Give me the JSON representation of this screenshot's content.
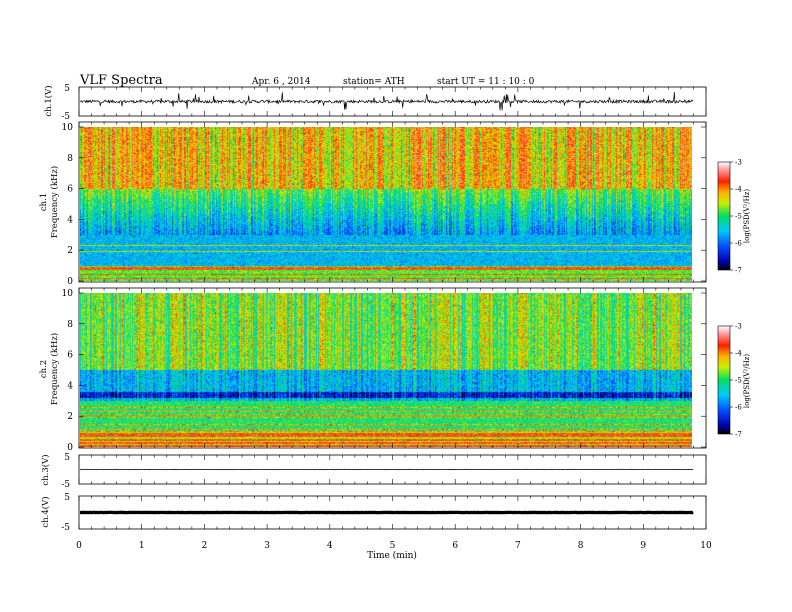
{
  "header": {
    "title": "VLF  Spectra",
    "date": "Apr. 6  , 2014",
    "station": "station= ATH",
    "start": "start  UT  =    11 : 10 : 0"
  },
  "chart_data": [
    {
      "type": "line",
      "panel": "ch1-waveform",
      "ylabel": "ch.1(V)",
      "ylim": [
        -5,
        5
      ],
      "y_ticks": [
        5,
        -5
      ],
      "xlim": [
        0,
        10
      ],
      "baseline": 0,
      "approx_amplitude": 1
    },
    {
      "type": "heatmap",
      "panel": "ch1-spectrogram",
      "ylabel": "ch.1\nFrequency (kHz)",
      "ylim": [
        0,
        10
      ],
      "y_ticks": [
        0,
        2,
        4,
        6,
        8,
        10
      ],
      "xlim": [
        0,
        9.8
      ],
      "colorbar_label": "log(PSD(V²/Hz)",
      "colorbar_range": [
        -7,
        -3
      ],
      "colorbar_ticks": [
        -7,
        -6,
        -5,
        -4,
        -3
      ]
    },
    {
      "type": "heatmap",
      "panel": "ch2-spectrogram",
      "ylabel": "ch.2\nFrequency (kHz)",
      "ylim": [
        0,
        10
      ],
      "y_ticks": [
        0,
        2,
        4,
        6,
        8,
        10
      ],
      "xlim": [
        0,
        9.8
      ],
      "colorbar_label": "log(PSD(V²/Hz)",
      "colorbar_range": [
        -7,
        -3
      ],
      "colorbar_ticks": [
        -7,
        -6,
        -5,
        -4,
        -3
      ]
    },
    {
      "type": "line",
      "panel": "ch3-waveform",
      "ylabel": "ch.3(V)",
      "ylim": [
        -5,
        5
      ],
      "y_ticks": [
        5,
        -5
      ],
      "xlim": [
        0,
        10
      ],
      "baseline": 0
    },
    {
      "type": "line",
      "panel": "ch4-waveform",
      "ylabel": "ch.4(V)",
      "ylim": [
        -5,
        5
      ],
      "y_ticks": [
        5,
        -5
      ],
      "xlim": [
        0,
        10
      ],
      "baseline": 0
    }
  ],
  "x_axis": {
    "label": "Time  (min)",
    "ticks": [
      "0",
      "1",
      "2",
      "3",
      "4",
      "5",
      "6",
      "7",
      "8",
      "9",
      "10"
    ],
    "range": [
      0,
      10
    ]
  }
}
